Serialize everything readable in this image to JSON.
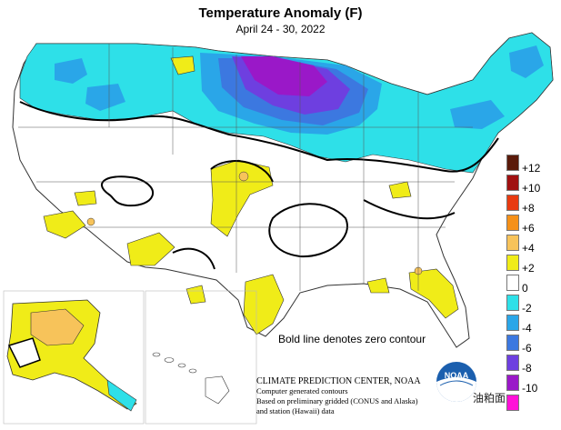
{
  "header": {
    "title": "Temperature Anomaly (F)",
    "subtitle": "April 24 - 30, 2022"
  },
  "map": {
    "note": "Bold line denotes zero contour",
    "regions": [
      "CONUS",
      "Alaska",
      "Hawaii"
    ]
  },
  "credit": {
    "line1": "CLIMATE PREDICTION CENTER, NOAA",
    "line2": "Computer generated contours",
    "line3": "Based on preliminary gridded (CONUS and Alaska)",
    "line4": "and station (Hawaii) data"
  },
  "logo": {
    "text": "NOAA"
  },
  "watermark": {
    "text": "油粕面"
  },
  "legend": {
    "items": [
      {
        "label": "+12",
        "color": "#5a1a0a"
      },
      {
        "label": "+10",
        "color": "#a01010"
      },
      {
        "label": "+8",
        "color": "#e83a10"
      },
      {
        "label": "+6",
        "color": "#f59018"
      },
      {
        "label": "+4",
        "color": "#f7c35a"
      },
      {
        "label": "+2",
        "color": "#f0ec18"
      },
      {
        "label": "0",
        "color": "#ffffff"
      },
      {
        "label": "-2",
        "color": "#2ee0e8"
      },
      {
        "label": "-4",
        "color": "#2aa6e8"
      },
      {
        "label": "-6",
        "color": "#3c78e0"
      },
      {
        "label": "-8",
        "color": "#6e3fe0"
      },
      {
        "label": "-10",
        "color": "#9a18c8"
      },
      {
        "label": "",
        "color": "#ff10d8"
      }
    ]
  }
}
